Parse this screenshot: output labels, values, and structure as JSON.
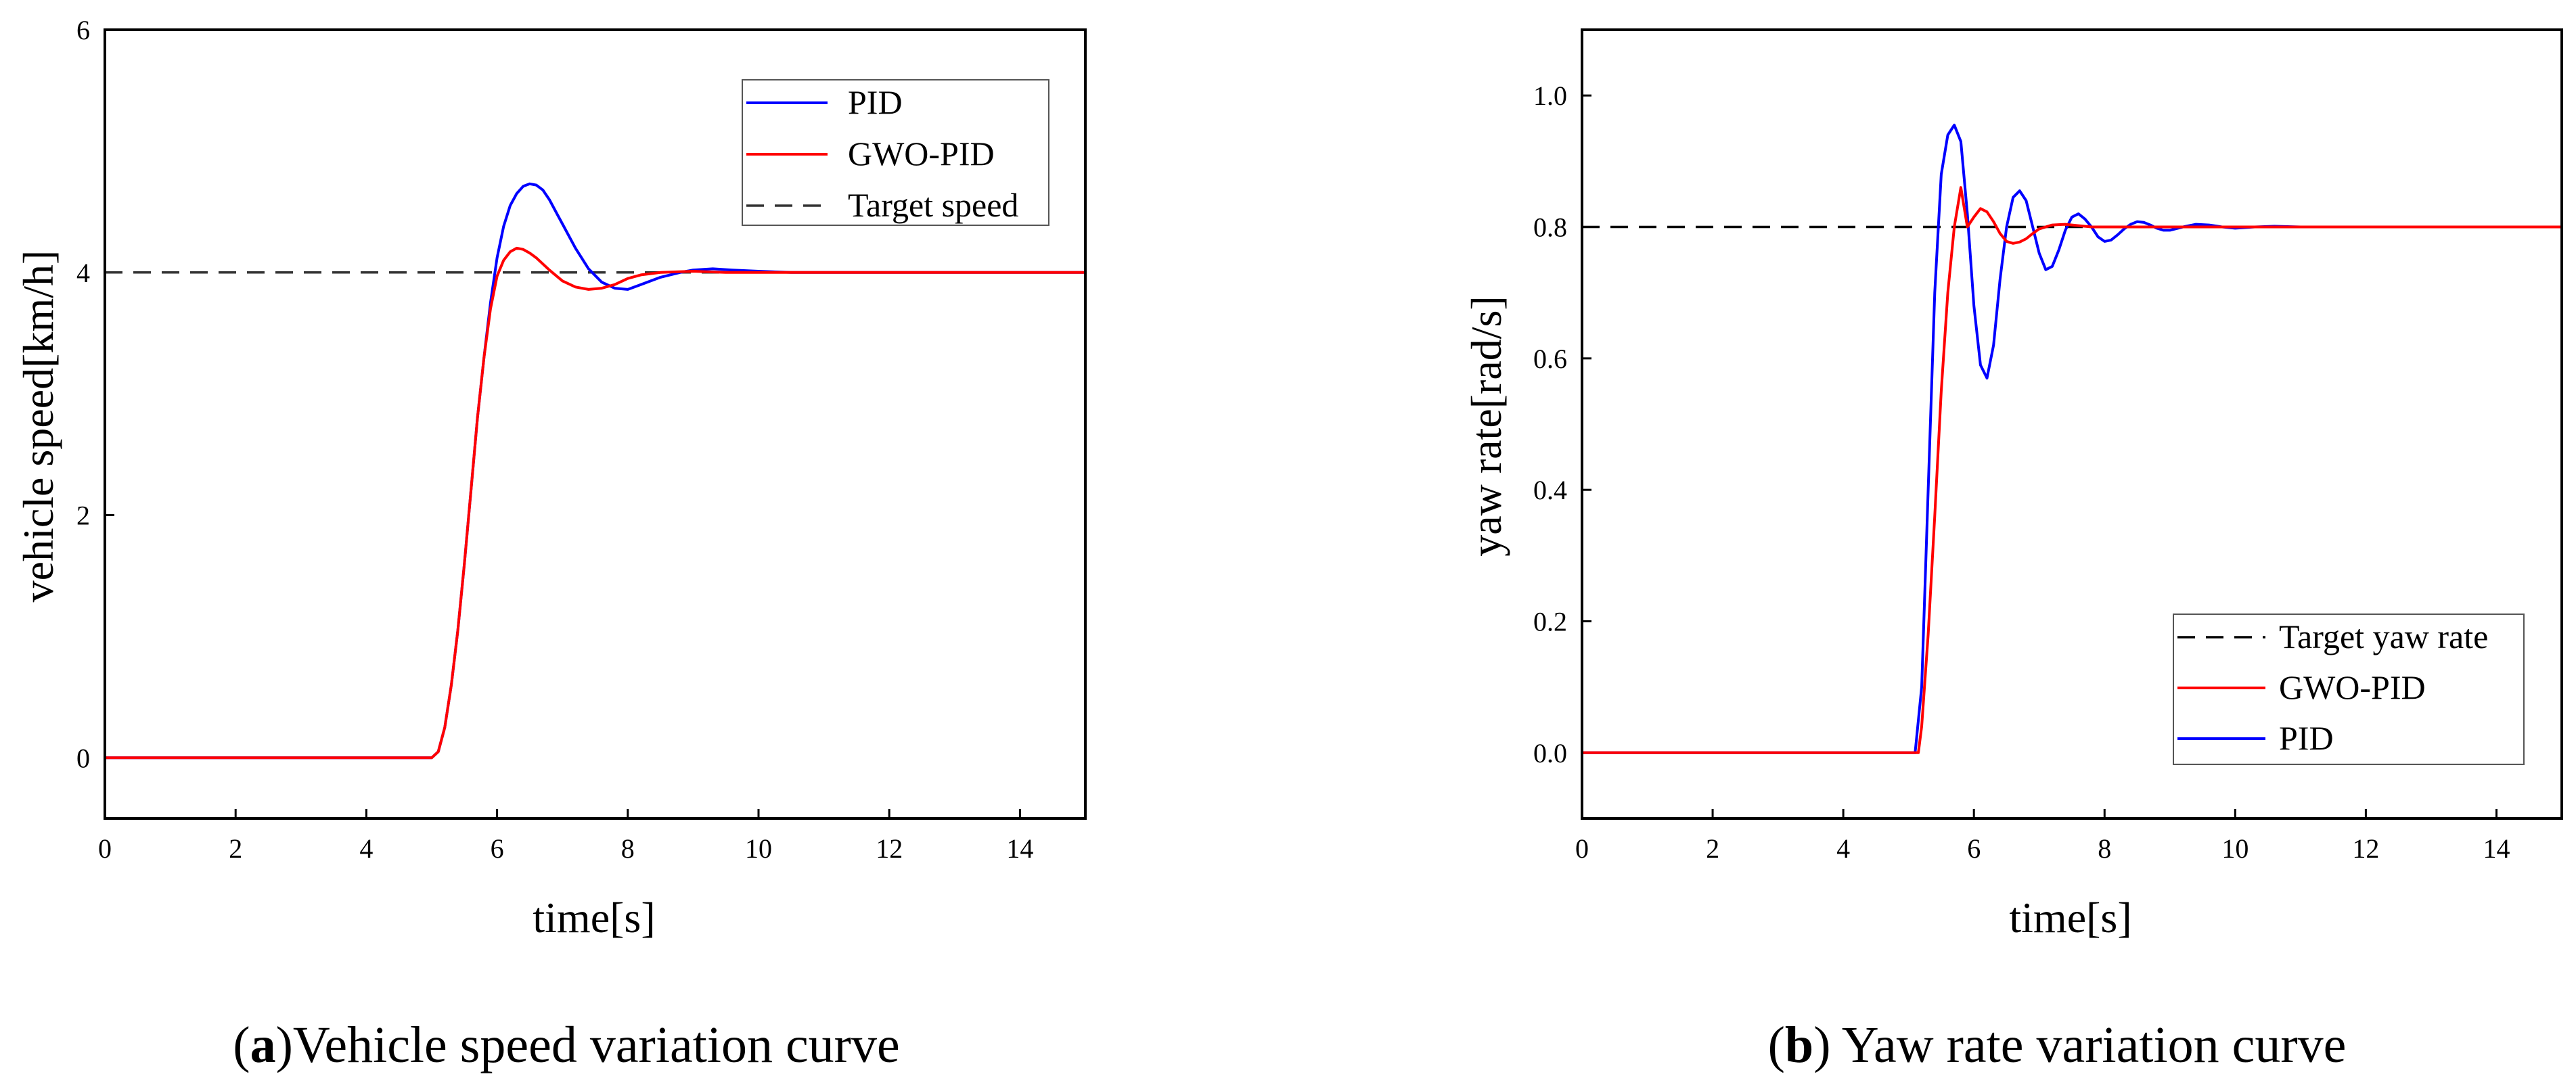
{
  "chart_data": [
    {
      "type": "line",
      "id": "a",
      "title": "",
      "xlabel": "time[s]",
      "ylabel": "vehicle speed[km/h]",
      "xlim": [
        0,
        15
      ],
      "ylim": [
        -0.5,
        6
      ],
      "xticks": [
        0,
        2,
        4,
        6,
        8,
        10,
        12,
        14
      ],
      "yticks": [
        0,
        2,
        4,
        6
      ],
      "grid": false,
      "legend_position": "top-right",
      "caption": {
        "label": "a",
        "text": "Vehicle speed variation curve",
        "prefix": "(",
        "suffix": ")"
      },
      "series": [
        {
          "name": "PID",
          "color": "#0000ff",
          "dash": "solid",
          "x": [
            0,
            5.0,
            5.1,
            5.2,
            5.3,
            5.4,
            5.5,
            5.6,
            5.7,
            5.8,
            5.9,
            6.0,
            6.1,
            6.2,
            6.3,
            6.4,
            6.5,
            6.6,
            6.7,
            6.8,
            6.9,
            7.0,
            7.2,
            7.4,
            7.6,
            7.8,
            8.0,
            8.2,
            8.5,
            8.8,
            9.0,
            9.3,
            9.6,
            10.0,
            10.5,
            11.0,
            12.0,
            15.0
          ],
          "y": [
            0,
            0,
            0.05,
            0.25,
            0.6,
            1.05,
            1.6,
            2.2,
            2.8,
            3.3,
            3.75,
            4.12,
            4.38,
            4.55,
            4.65,
            4.71,
            4.73,
            4.72,
            4.68,
            4.6,
            4.5,
            4.4,
            4.2,
            4.03,
            3.92,
            3.87,
            3.86,
            3.9,
            3.96,
            4.0,
            4.02,
            4.03,
            4.02,
            4.01,
            4.0,
            4.0,
            4.0,
            4.0
          ]
        },
        {
          "name": "GWO-PID",
          "color": "#ff0000",
          "dash": "solid",
          "x": [
            0,
            5.0,
            5.1,
            5.2,
            5.3,
            5.4,
            5.5,
            5.6,
            5.7,
            5.8,
            5.9,
            6.0,
            6.1,
            6.2,
            6.3,
            6.4,
            6.5,
            6.6,
            6.8,
            7.0,
            7.2,
            7.4,
            7.6,
            7.8,
            8.0,
            8.2,
            8.5,
            9.0,
            9.5,
            10.0,
            11.0,
            15.0
          ],
          "y": [
            0,
            0,
            0.05,
            0.25,
            0.6,
            1.05,
            1.6,
            2.2,
            2.8,
            3.3,
            3.7,
            3.97,
            4.1,
            4.17,
            4.2,
            4.19,
            4.16,
            4.12,
            4.02,
            3.93,
            3.88,
            3.86,
            3.87,
            3.9,
            3.95,
            3.98,
            4.0,
            4.01,
            4.0,
            4.0,
            4.0,
            4.0
          ]
        },
        {
          "name": "Target speed",
          "color": "#333333",
          "dash": "dashed",
          "x": [
            0,
            15
          ],
          "y": [
            4,
            4
          ]
        }
      ],
      "legend_order": [
        "PID",
        "GWO-PID",
        "Target speed"
      ]
    },
    {
      "type": "line",
      "id": "b",
      "title": "",
      "xlabel": "time[s]",
      "ylabel": "yaw rate[rad/s]",
      "xlim": [
        0,
        15
      ],
      "ylim": [
        -0.1,
        1.1
      ],
      "xticks": [
        0,
        2,
        4,
        6,
        8,
        10,
        12,
        14
      ],
      "yticks": [
        0.0,
        0.2,
        0.4,
        0.6,
        0.8,
        1.0
      ],
      "ytick_labels": [
        "0.0",
        "0.2",
        "0.4",
        "0.6",
        "0.8",
        "1.0"
      ],
      "grid": false,
      "legend_position": "bottom-right",
      "caption": {
        "label": "b",
        "text": " Yaw rate variation curve",
        "prefix": "(",
        "suffix": ")"
      },
      "series": [
        {
          "name": "PID",
          "color": "#0000ff",
          "dash": "solid",
          "x": [
            0,
            5.1,
            5.2,
            5.3,
            5.4,
            5.5,
            5.6,
            5.7,
            5.8,
            5.9,
            6.0,
            6.1,
            6.2,
            6.3,
            6.4,
            6.5,
            6.6,
            6.7,
            6.8,
            6.9,
            7.0,
            7.1,
            7.2,
            7.3,
            7.4,
            7.5,
            7.6,
            7.7,
            7.8,
            7.9,
            8.0,
            8.1,
            8.2,
            8.3,
            8.4,
            8.5,
            8.6,
            8.7,
            8.8,
            8.9,
            9.0,
            9.2,
            9.4,
            9.6,
            9.8,
            10.0,
            10.3,
            10.6,
            11.0,
            12.0,
            15.0
          ],
          "y": [
            0,
            0,
            0.1,
            0.4,
            0.7,
            0.88,
            0.94,
            0.955,
            0.93,
            0.82,
            0.68,
            0.59,
            0.57,
            0.62,
            0.72,
            0.8,
            0.845,
            0.855,
            0.84,
            0.8,
            0.76,
            0.735,
            0.74,
            0.765,
            0.795,
            0.815,
            0.82,
            0.812,
            0.8,
            0.785,
            0.778,
            0.78,
            0.788,
            0.797,
            0.804,
            0.808,
            0.807,
            0.803,
            0.798,
            0.795,
            0.795,
            0.8,
            0.804,
            0.803,
            0.8,
            0.798,
            0.8,
            0.801,
            0.8,
            0.8,
            0.8
          ]
        },
        {
          "name": "GWO-PID",
          "color": "#ff0000",
          "dash": "solid",
          "x": [
            0,
            5.15,
            5.2,
            5.3,
            5.4,
            5.5,
            5.6,
            5.7,
            5.8,
            5.9,
            6.0,
            6.1,
            6.2,
            6.3,
            6.4,
            6.5,
            6.6,
            6.7,
            6.8,
            6.9,
            7.0,
            7.2,
            7.4,
            7.6,
            7.8,
            8.0,
            8.5,
            9.0,
            10.0,
            15.0
          ],
          "y": [
            0,
            0,
            0.04,
            0.18,
            0.36,
            0.55,
            0.7,
            0.8,
            0.86,
            0.8,
            0.815,
            0.828,
            0.823,
            0.808,
            0.79,
            0.778,
            0.775,
            0.777,
            0.782,
            0.79,
            0.797,
            0.803,
            0.804,
            0.802,
            0.8,
            0.8,
            0.8,
            0.8,
            0.8,
            0.8
          ]
        },
        {
          "name": "Target yaw rate",
          "color": "#000000",
          "dash": "dashed",
          "x": [
            0,
            15
          ],
          "y": [
            0.8,
            0.8
          ]
        }
      ],
      "legend_order": [
        "Target yaw rate",
        "GWO-PID",
        "PID"
      ]
    }
  ]
}
